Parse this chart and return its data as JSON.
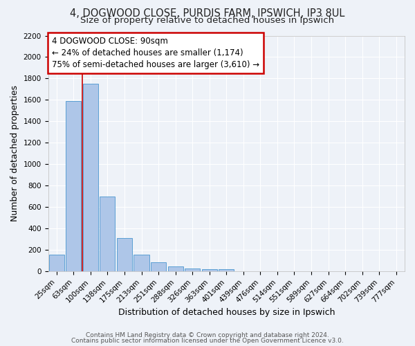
{
  "title_line1": "4, DOGWOOD CLOSE, PURDIS FARM, IPSWICH, IP3 8UL",
  "title_line2": "Size of property relative to detached houses in Ipswich",
  "xlabel": "Distribution of detached houses by size in Ipswich",
  "ylabel": "Number of detached properties",
  "bar_labels": [
    "25sqm",
    "63sqm",
    "100sqm",
    "138sqm",
    "175sqm",
    "213sqm",
    "251sqm",
    "288sqm",
    "326sqm",
    "363sqm",
    "401sqm",
    "439sqm",
    "476sqm",
    "514sqm",
    "551sqm",
    "589sqm",
    "627sqm",
    "664sqm",
    "702sqm",
    "739sqm",
    "777sqm"
  ],
  "bar_values": [
    160,
    1590,
    1750,
    700,
    310,
    155,
    85,
    50,
    28,
    20,
    20,
    0,
    0,
    0,
    0,
    0,
    0,
    0,
    0,
    0,
    0
  ],
  "bar_color": "#aec6e8",
  "bar_edge_color": "#5a9fd4",
  "ylim": [
    0,
    2200
  ],
  "yticks": [
    0,
    200,
    400,
    600,
    800,
    1000,
    1200,
    1400,
    1600,
    1800,
    2000,
    2200
  ],
  "vline_x": 1.5,
  "vline_color": "#cc0000",
  "annotation_box_text": "4 DOGWOOD CLOSE: 90sqm\n← 24% of detached houses are smaller (1,174)\n75% of semi-detached houses are larger (3,610) →",
  "footer_line1": "Contains HM Land Registry data © Crown copyright and database right 2024.",
  "footer_line2": "Contains public sector information licensed under the Open Government Licence v3.0.",
  "background_color": "#eef2f8",
  "grid_color": "#ffffff",
  "title_fontsize": 10.5,
  "subtitle_fontsize": 9.5,
  "axis_label_fontsize": 9,
  "tick_fontsize": 7.5,
  "footer_fontsize": 6.5
}
